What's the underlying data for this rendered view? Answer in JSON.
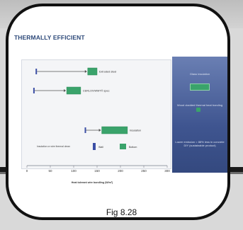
{
  "slide": {
    "title": "THERMALLY EFFICIENT",
    "caption": "Fig 8.28"
  },
  "side_panel": {
    "label_top": "Glass insulation",
    "label_mid": "Wood cladded thermal heat bonding",
    "label_bottom": "Lower emission = 88% less in concrete\nDIY (sustainable product)"
  },
  "colors": {
    "series_green": "#3aa36b",
    "series_blue": "#3c4fa6",
    "panel_blue": "#3f5590",
    "title_blue": "#2e4a7a"
  },
  "chart_data": {
    "type": "bar",
    "title": "",
    "xlabel": "Heat tolerant wire bundling (W/m²)",
    "ylabel": "",
    "xlim": [
      0,
      300
    ],
    "x_ticks": [
      "0",
      "50",
      "100",
      "150",
      "200",
      "250",
      "300"
    ],
    "rows": [
      {
        "label": "Extruded steel",
        "range": [
          130,
          150
        ],
        "start": 20,
        "marker_color": "#3c4fa6"
      },
      {
        "label": "CERLOX/WMT® spec",
        "range": [
          85,
          115
        ],
        "start": 15,
        "marker_color": "#3c4fa6"
      },
      {
        "label": "Insulation",
        "range": [
          160,
          215
        ],
        "start": 125,
        "marker_color": "#3c4fa6"
      }
    ],
    "legend": {
      "note": "Insulation or wire thermal clean",
      "entries": [
        "Wall",
        "Bottom"
      ]
    }
  }
}
